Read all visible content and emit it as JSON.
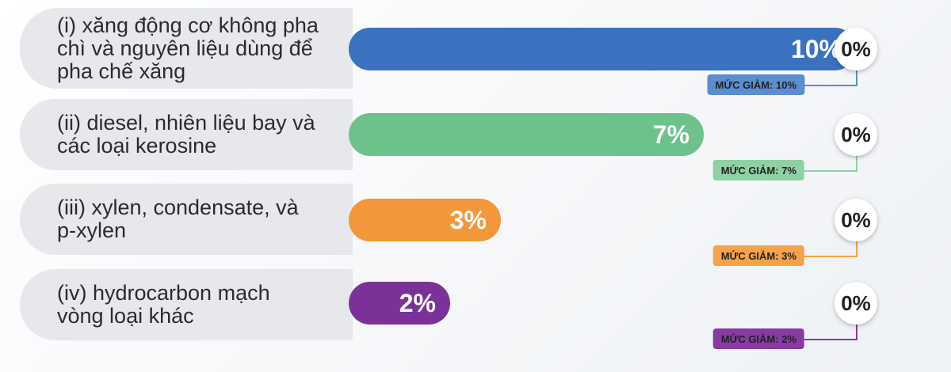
{
  "chart_data": {
    "type": "bar",
    "orientation": "horizontal",
    "categories": [
      "(i) xăng động cơ không pha chì và nguyên liệu dùng để pha chế xăng",
      "(ii) diesel, nhiên liệu bay và các loại kerosine",
      "(iii) xylen, condensate, và p-xylen",
      "(iv) hydrocarbon mạch vòng loại khác"
    ],
    "values": [
      10,
      7,
      3,
      2
    ],
    "value_labels": [
      "10%",
      "7%",
      "3%",
      "2%"
    ],
    "colors": [
      "#3a72c0",
      "#6cc28b",
      "#f2973a",
      "#7a3299"
    ],
    "new_value_labels": [
      "0%",
      "0%",
      "0%",
      "0%"
    ],
    "reduction_labels": [
      "MỨC GIẢM: 10%",
      "MỨC GIẢM: 7%",
      "MỨC GIẢM: 3%",
      "MỨC GIẢM: 2%"
    ],
    "reduction_colors": [
      "#5b8ed0",
      "#8fd0a5",
      "#f5a24c",
      "#8a3aa3"
    ],
    "xlim": [
      0,
      10
    ]
  }
}
